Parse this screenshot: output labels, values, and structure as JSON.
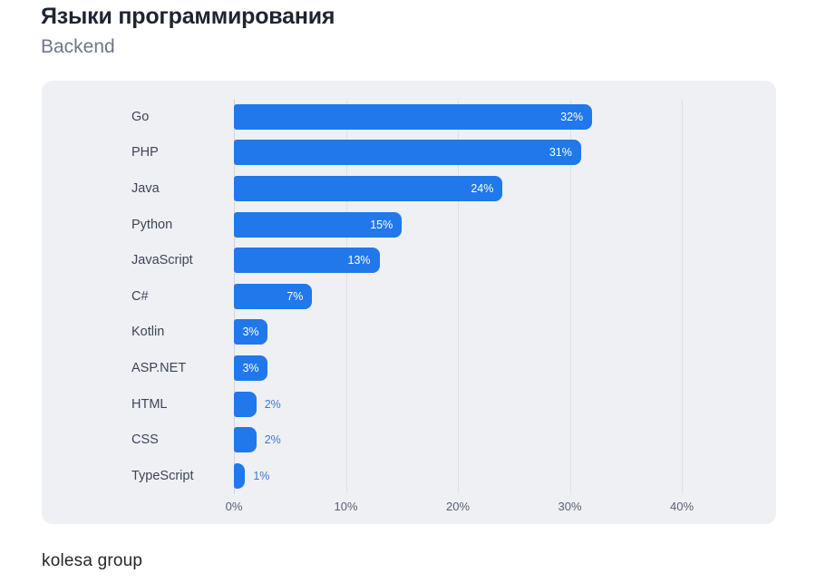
{
  "header": {
    "title": "Языки программирования",
    "subtitle": "Backend"
  },
  "footer": {
    "brand": "kolesa group"
  },
  "chart_data": {
    "type": "bar",
    "orientation": "horizontal",
    "title": "Языки программирования",
    "subtitle": "Backend",
    "categories": [
      "Go",
      "PHP",
      "Java",
      "Python",
      "JavaScript",
      "C#",
      "Kotlin",
      "ASP.NET",
      "HTML",
      "CSS",
      "TypeScript"
    ],
    "values": [
      32,
      31,
      24,
      15,
      13,
      7,
      3,
      3,
      2,
      2,
      1
    ],
    "value_labels": [
      "32%",
      "31%",
      "24%",
      "15%",
      "13%",
      "7%",
      "3%",
      "3%",
      "2%",
      "2%",
      "1%"
    ],
    "unit": "%",
    "xlabel": "",
    "ylabel": "",
    "xlim": [
      0,
      45
    ],
    "x_ticks": [
      0,
      10,
      20,
      30,
      40
    ],
    "x_tick_labels": [
      "0%",
      "10%",
      "20%",
      "30%",
      "40%"
    ],
    "grid": true,
    "legend": false,
    "value_label_position_rule": "inside if value >= 3, outside otherwise",
    "colors": {
      "bar": "#2178EA",
      "panel_bg": "#EFF0F4",
      "gridline": "#DFE1E7",
      "axis_line": "#D0D3DA",
      "category_label": "#3D4554",
      "tick_label": "#5A6170",
      "value_label_inside": "#FFFFFF",
      "value_label_outside": "#3B79D2",
      "title": "#1F2430",
      "subtitle": "#6E7787",
      "footer_brand": "#25272C",
      "page_bg": "#FFFFFF"
    }
  }
}
